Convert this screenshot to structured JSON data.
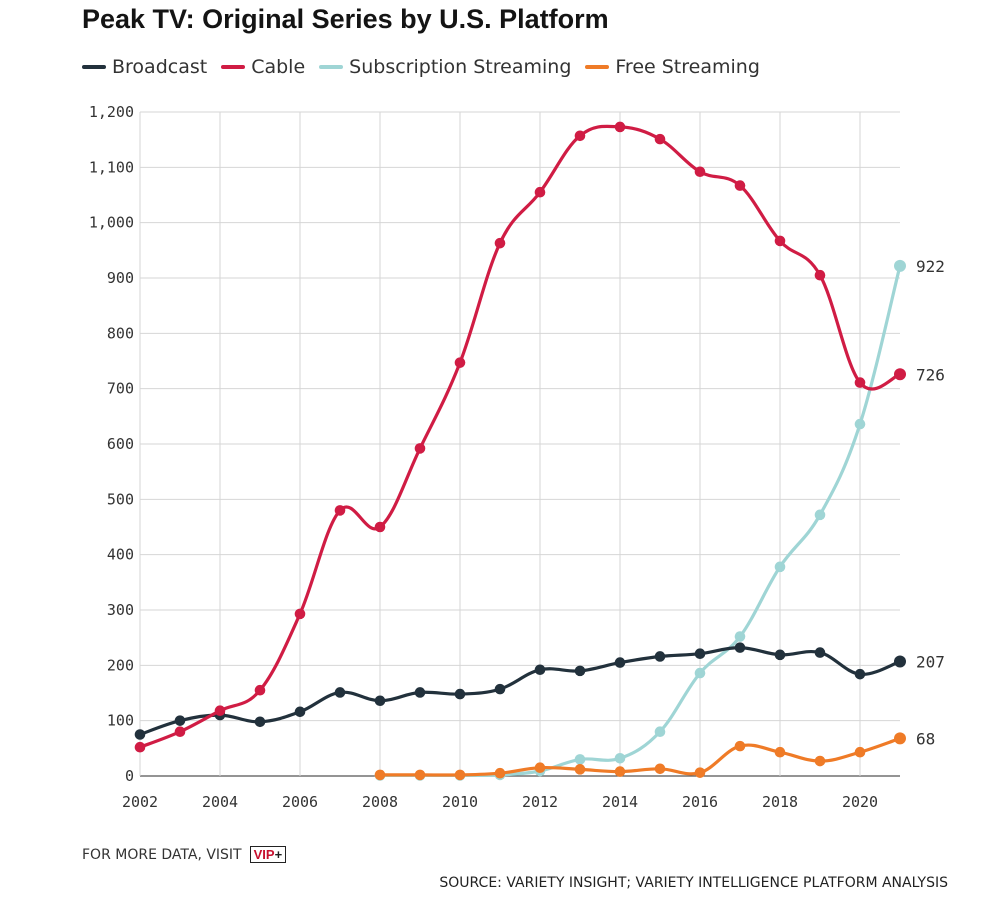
{
  "chart_data": {
    "type": "line",
    "title": "Peak TV: Original Series by U.S. Platform",
    "xlabel": "",
    "ylabel": "",
    "xlim": [
      2002,
      2021
    ],
    "ylim": [
      0,
      1200
    ],
    "x_ticks": [
      2002,
      2004,
      2006,
      2008,
      2010,
      2012,
      2014,
      2016,
      2018,
      2020
    ],
    "y_ticks": [
      0,
      100,
      200,
      300,
      400,
      500,
      600,
      700,
      800,
      900,
      1000,
      1100,
      1200
    ],
    "y_tick_labels": [
      "0",
      "100",
      "200",
      "300",
      "400",
      "500",
      "600",
      "700",
      "800",
      "900",
      "1,000",
      "1,100",
      "1,200"
    ],
    "grid": true,
    "legend_position": "top-left",
    "series": [
      {
        "name": "Broadcast",
        "color": "#22313c",
        "x": [
          2002,
          2003,
          2004,
          2005,
          2006,
          2007,
          2008,
          2009,
          2010,
          2011,
          2012,
          2013,
          2014,
          2015,
          2016,
          2017,
          2018,
          2019,
          2020,
          2021
        ],
        "values": [
          75,
          100,
          110,
          98,
          116,
          151,
          136,
          151,
          148,
          157,
          192,
          190,
          205,
          216,
          221,
          232,
          219,
          223,
          184,
          207
        ],
        "end_label": "207"
      },
      {
        "name": "Cable",
        "color": "#d01c44",
        "x": [
          2002,
          2003,
          2004,
          2005,
          2006,
          2007,
          2008,
          2009,
          2010,
          2011,
          2012,
          2013,
          2014,
          2015,
          2016,
          2017,
          2018,
          2019,
          2020,
          2021
        ],
        "values": [
          52,
          80,
          118,
          155,
          293,
          480,
          450,
          592,
          747,
          963,
          1055,
          1157,
          1173,
          1151,
          1092,
          1067,
          967,
          905,
          711,
          726
        ],
        "end_label": "726"
      },
      {
        "name": "Subscription Streaming",
        "color": "#9fd5d5",
        "x": [
          2008,
          2009,
          2010,
          2011,
          2012,
          2013,
          2014,
          2015,
          2016,
          2017,
          2018,
          2019,
          2020,
          2021
        ],
        "values": [
          1,
          1,
          1,
          2,
          9,
          30,
          32,
          80,
          186,
          252,
          378,
          472,
          636,
          922
        ],
        "end_label": "922"
      },
      {
        "name": "Free Streaming",
        "color": "#ef7b27",
        "x": [
          2008,
          2009,
          2010,
          2011,
          2012,
          2013,
          2014,
          2015,
          2016,
          2017,
          2018,
          2019,
          2020,
          2021
        ],
        "values": [
          2,
          2,
          2,
          5,
          15,
          12,
          8,
          13,
          6,
          54,
          43,
          27,
          43,
          68
        ],
        "end_label": "68"
      }
    ]
  },
  "footer": {
    "more_data_label": "FOR MORE DATA, VISIT",
    "vip_main": "VIP",
    "vip_plus": "+",
    "source": "SOURCE: VARIETY INSIGHT; VARIETY INTELLIGENCE PLATFORM ANALYSIS"
  }
}
